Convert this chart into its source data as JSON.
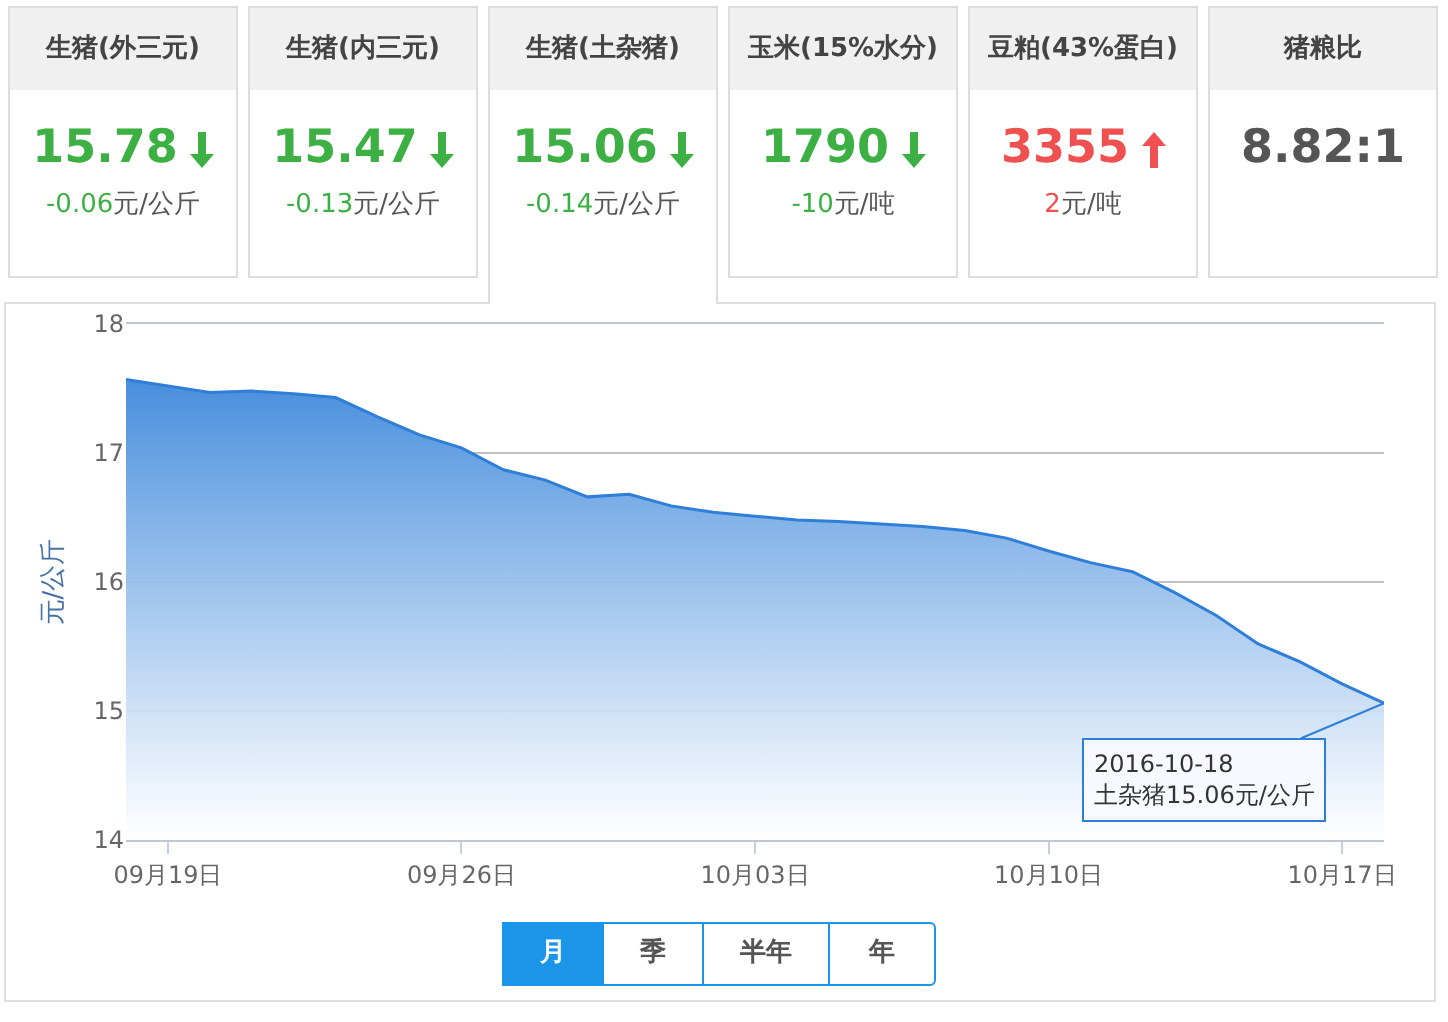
{
  "chart_data": [
    {
      "type": "other",
      "categories": [
        "生猪(外三元)",
        "生猪(内三元)",
        "生猪(土杂猪)",
        "玉米(15%水分)",
        "豆粕(43%蛋白)",
        "猪粮比"
      ],
      "value_labels": [
        "15.78",
        "15.47",
        "15.06",
        "1790",
        "3355",
        "8.82:1"
      ],
      "annotations": [
        "-0.06元/公斤",
        "-0.13元/公斤",
        "-0.14元/公斤",
        "-10元/吨",
        "2元/吨"
      ]
    },
    {
      "type": "area",
      "ylabel": "元/公斤",
      "color": "#2f7fd9",
      "x": [
        "2016-09-18",
        "2016-09-19",
        "2016-09-20",
        "2016-09-21",
        "2016-09-22",
        "2016-09-23",
        "2016-09-24",
        "2016-09-25",
        "2016-09-26",
        "2016-09-27",
        "2016-09-28",
        "2016-09-29",
        "2016-09-30",
        "2016-10-01",
        "2016-10-02",
        "2016-10-03",
        "2016-10-04",
        "2016-10-05",
        "2016-10-06",
        "2016-10-07",
        "2016-10-08",
        "2016-10-09",
        "2016-10-10",
        "2016-10-11",
        "2016-10-12",
        "2016-10-13",
        "2016-10-14",
        "2016-10-15",
        "2016-10-16",
        "2016-10-17",
        "2016-10-18"
      ],
      "values": [
        17.57,
        17.52,
        17.47,
        17.48,
        17.46,
        17.43,
        17.28,
        17.14,
        17.04,
        16.87,
        16.79,
        16.66,
        16.68,
        16.59,
        16.54,
        16.51,
        16.48,
        16.47,
        16.45,
        16.43,
        16.4,
        16.34,
        16.24,
        16.15,
        16.08,
        15.92,
        15.74,
        15.52,
        15.38,
        15.21,
        15.06
      ],
      "xlim": [
        "2016-09-18",
        "2016-10-18"
      ],
      "xticks": [
        {
          "value": "2016-09-19",
          "label": "09月19日"
        },
        {
          "value": "2016-09-26",
          "label": "09月26日"
        },
        {
          "value": "2016-10-03",
          "label": "10月03日"
        },
        {
          "value": "2016-10-10",
          "label": "10月10日"
        },
        {
          "value": "2016-10-17",
          "label": "10月17日"
        }
      ],
      "ylim": [
        14,
        18
      ],
      "yticks": [
        14,
        15,
        16,
        17,
        18
      ],
      "grid": "y",
      "marker": "none",
      "annotations": [
        {
          "text": "2016-10-18\n土杂猪15.06元/公斤",
          "x": "2016-10-18",
          "y": 15.06
        }
      ]
    },
    {
      "type": "other",
      "categories": [
        "月",
        "季",
        "半年",
        "年"
      ]
    }
  ]
}
